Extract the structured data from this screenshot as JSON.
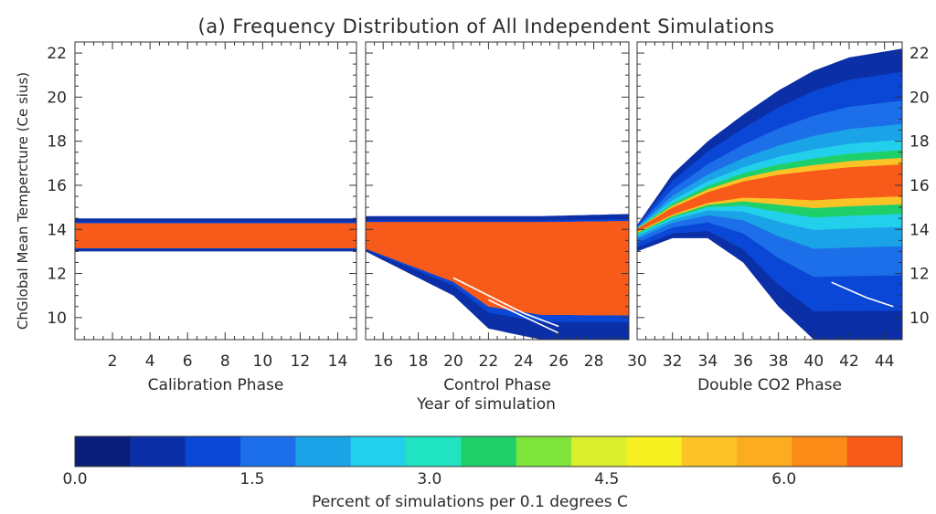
{
  "chart_data": {
    "type": "heatmap",
    "title": "(a) Frequency Distribution of All Independent Simulations",
    "ylabel": "ChGlobal Mean Tempercture (Ce sius)",
    "xlabel": "Year of simulation",
    "ylim": [
      9,
      22.5
    ],
    "y_ticks": [
      "10",
      "12",
      "14",
      "16",
      "18",
      "20",
      "22"
    ],
    "y_tick_values": [
      10,
      12,
      14,
      16,
      18,
      20,
      22
    ],
    "panels": [
      {
        "label": "Calibration Phase",
        "xlim": [
          0,
          15
        ],
        "x_ticks": [
          "2",
          "4",
          "6",
          "8",
          "10",
          "12",
          "14"
        ],
        "x_tick_values": [
          2,
          4,
          6,
          8,
          10,
          12,
          14
        ]
      },
      {
        "label": "Control Phase",
        "xlim": [
          15,
          30
        ],
        "x_ticks": [
          "16",
          "18",
          "20",
          "22",
          "24",
          "26",
          "28"
        ],
        "x_tick_values": [
          16,
          18,
          20,
          22,
          24,
          26,
          28
        ]
      },
      {
        "label": "Double CO2 Phase",
        "xlim": [
          30,
          45
        ],
        "x_ticks": [
          "30",
          "32",
          "34",
          "36",
          "38",
          "40",
          "42",
          "44"
        ],
        "x_tick_values": [
          30,
          32,
          34,
          36,
          38,
          40,
          42,
          44
        ]
      }
    ],
    "series": [
      {
        "x": [
          0,
          15
        ],
        "central_temp": [
          13.6,
          13.6
        ],
        "spread_lower": [
          13.0,
          13.0
        ],
        "spread_upper": [
          14.5,
          14.5
        ]
      },
      {
        "x": [
          15,
          20,
          22,
          25,
          30
        ],
        "central_temp": [
          13.5,
          13.5,
          13.5,
          13.5,
          13.4
        ],
        "spread_lower": [
          13.0,
          11.0,
          9.5,
          9.0,
          9.0
        ],
        "spread_upper": [
          14.6,
          14.6,
          14.6,
          14.6,
          14.7
        ]
      },
      {
        "x": [
          30,
          32,
          34,
          36,
          38,
          40,
          42,
          45
        ],
        "central_temp": [
          14.0,
          14.8,
          15.4,
          15.8,
          16.0,
          16.1,
          16.2,
          16.3
        ],
        "spread_lower": [
          13.0,
          13.6,
          13.6,
          12.5,
          10.5,
          9.0,
          9.0,
          9.0
        ],
        "spread_upper": [
          14.2,
          16.5,
          18.0,
          19.2,
          20.3,
          21.2,
          21.8,
          22.2
        ]
      }
    ],
    "colorbar": {
      "label": "Percent of simulations per 0.1 degrees C",
      "range": [
        0,
        7
      ],
      "tick_labels": [
        "0.0",
        "1.5",
        "3.0",
        "4.5",
        "6.0"
      ],
      "tick_values": [
        0,
        1.5,
        3,
        4.5,
        6
      ],
      "colors": [
        "#0a1f7a",
        "#0b2fa6",
        "#0a47d6",
        "#1c6fe8",
        "#1ba3e8",
        "#23d0ec",
        "#20e3c2",
        "#1fd06a",
        "#7ee43a",
        "#d9ef2e",
        "#f7f020",
        "#fbc325",
        "#fcad1f",
        "#fb8a17",
        "#f85a1a"
      ]
    }
  }
}
